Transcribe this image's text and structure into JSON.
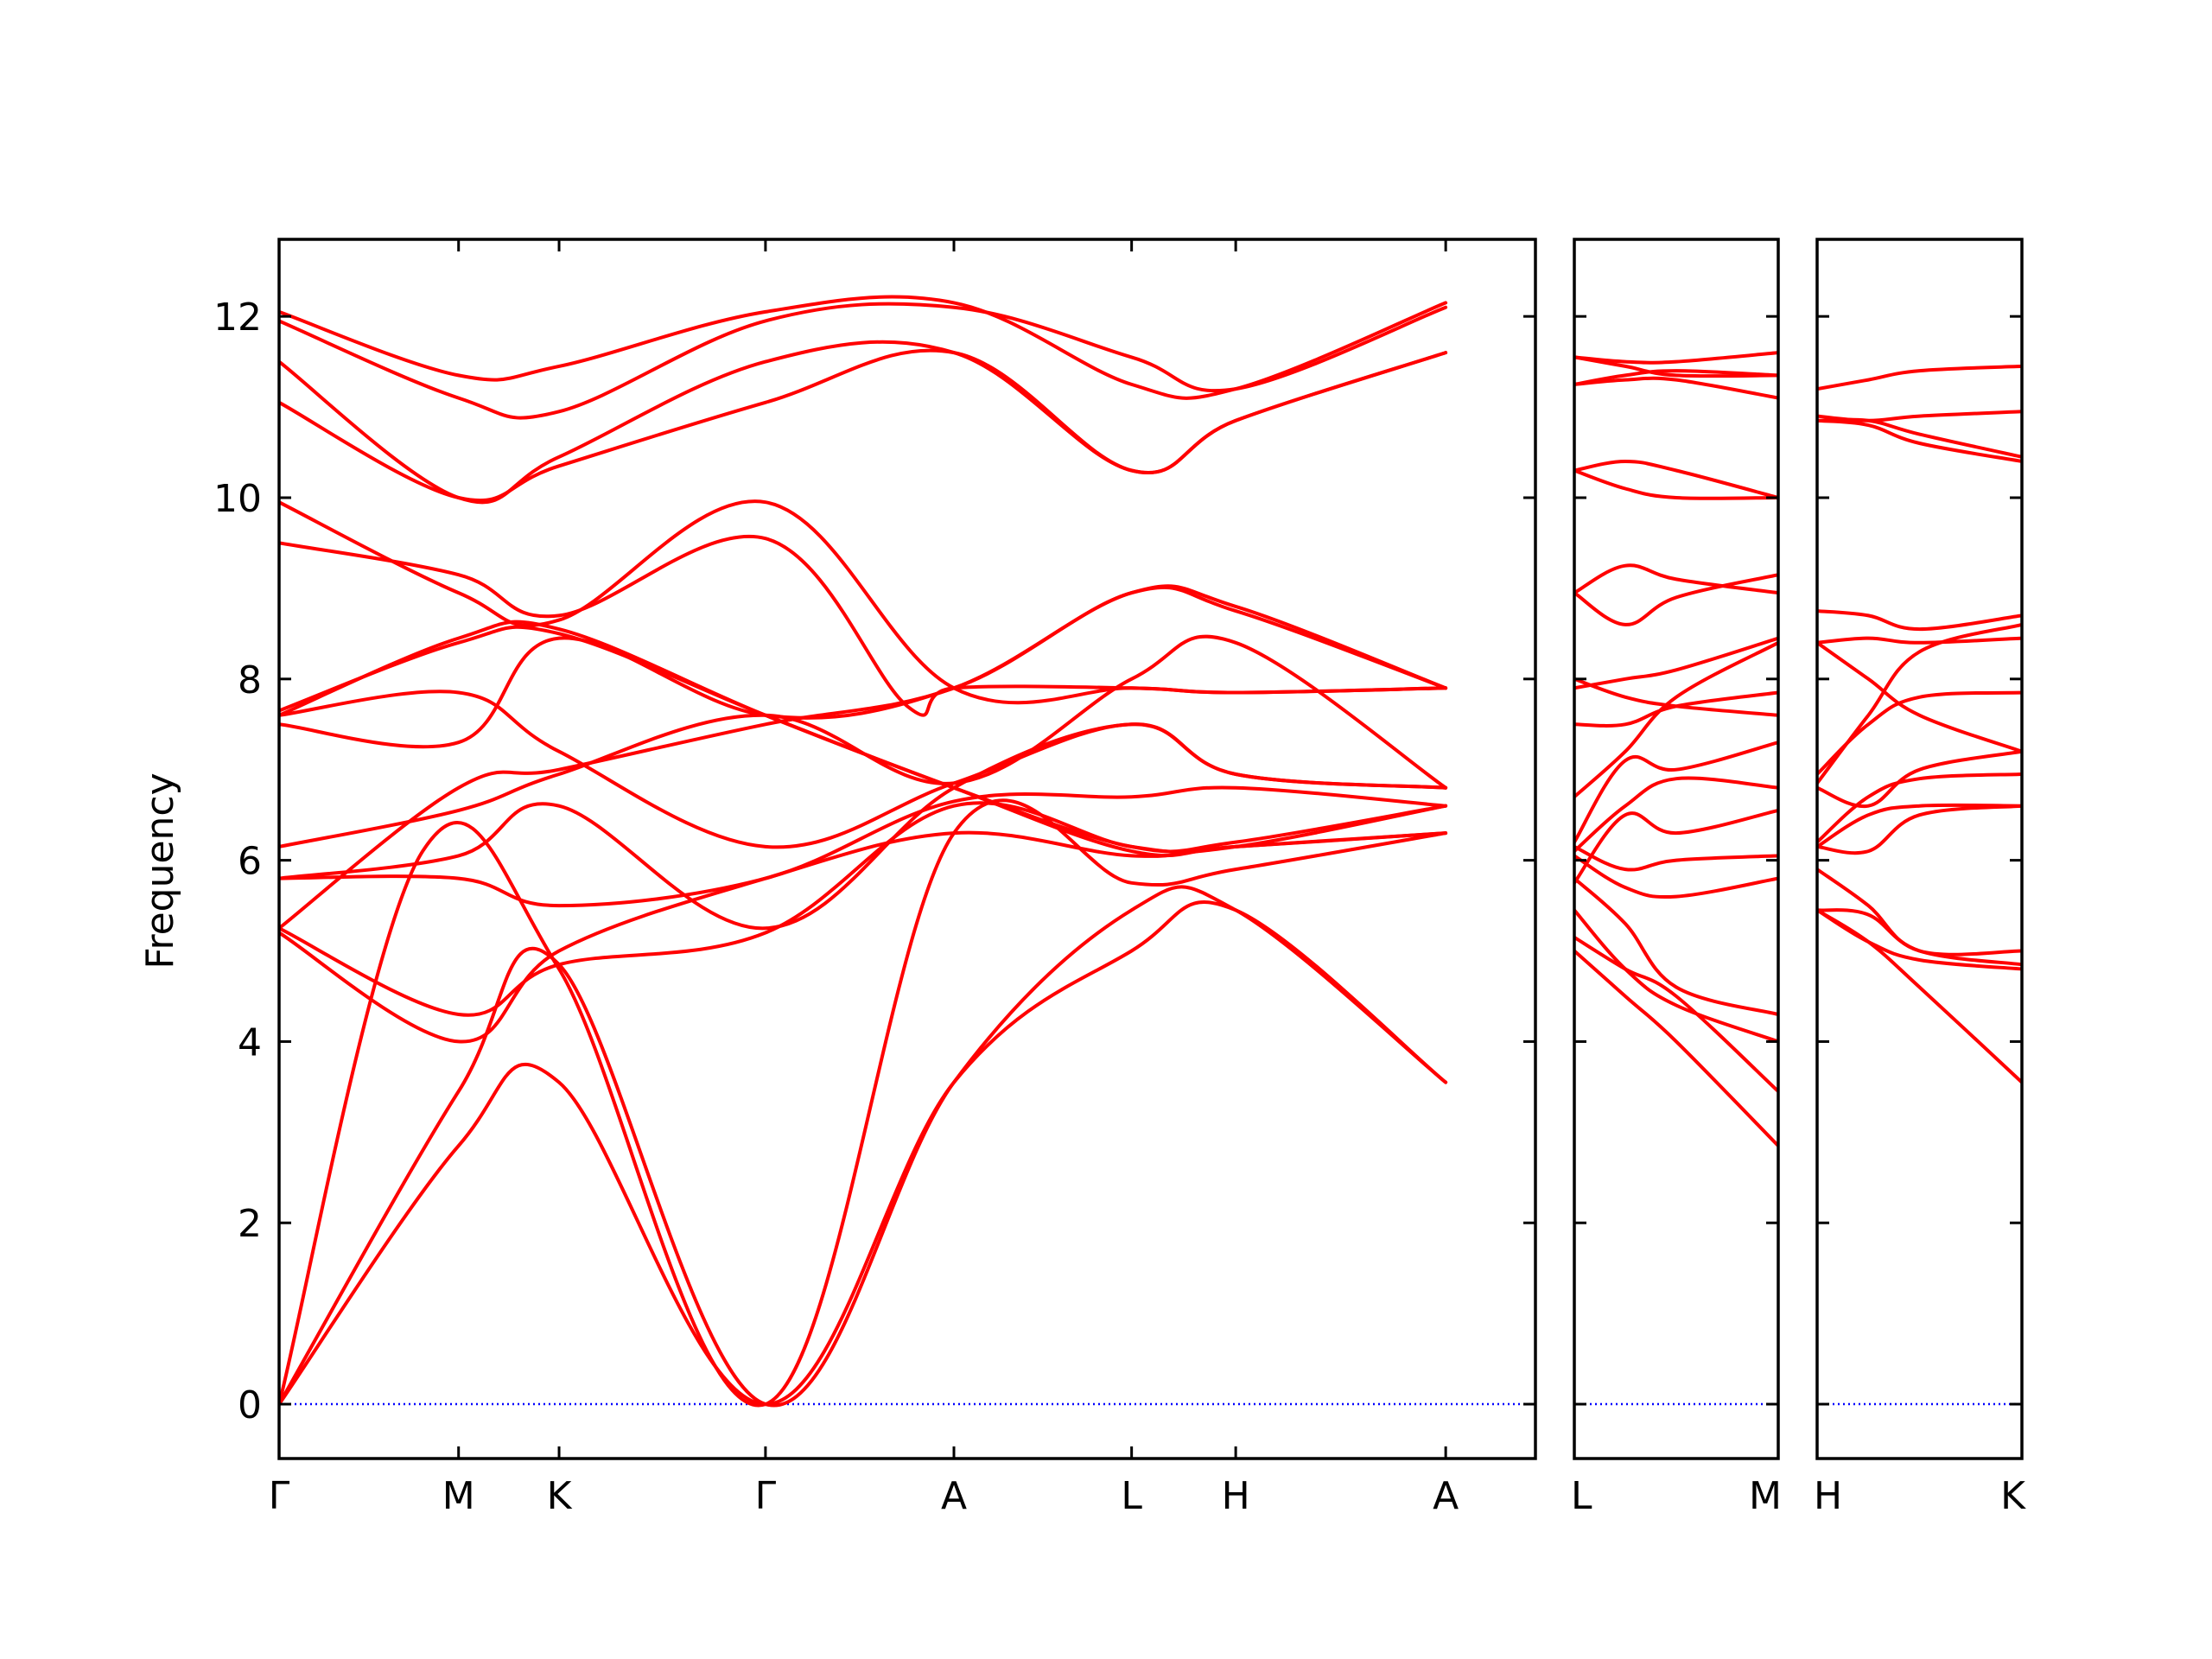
{
  "chart_data": {
    "type": "line",
    "title": "",
    "ylabel": "Frequency",
    "ylim": [
      -0.6,
      12.85
    ],
    "yticks": [
      0,
      2,
      4,
      6,
      8,
      10,
      12
    ],
    "line_color": "#ff0000",
    "zero_line_color": "#0000ff",
    "panels": [
      {
        "name": "main",
        "x_range": [
          0,
          7
        ],
        "tick_labels": [
          {
            "x": 0,
            "label": "Γ"
          },
          {
            "x": 1,
            "label": "M"
          },
          {
            "x": 1.56,
            "label": "K"
          },
          {
            "x": 2.71,
            "label": "Γ"
          },
          {
            "x": 3.76,
            "label": "A"
          },
          {
            "x": 4.75,
            "label": "L"
          },
          {
            "x": 5.33,
            "label": "H"
          },
          {
            "x": 6.5,
            "label": "A"
          }
        ],
        "series": [
          {
            "x": [
              0,
              1,
              1.56,
              2.71,
              3.76,
              4.75,
              5.33,
              6.5
            ],
            "y": [
              0,
              2.85,
              3.55,
              0,
              3.55,
              5.0,
              5.45,
              3.55
            ]
          },
          {
            "x": [
              0,
              1,
              1.56,
              2.71,
              3.76,
              4.75,
              5.33,
              6.5
            ],
            "y": [
              0,
              3.45,
              4.85,
              0,
              3.55,
              5.45,
              5.45,
              3.55
            ]
          },
          {
            "x": [
              0,
              0.8,
              1.56,
              2.71,
              3.76,
              4.75,
              5.33,
              6.5
            ],
            "y": [
              0,
              6.1,
              4.8,
              0,
              6.3,
              5.75,
              5.9,
              6.3
            ]
          },
          {
            "x": [
              0,
              1,
              1.56,
              2.71,
              3.76,
              4.75,
              5.33,
              6.5
            ],
            "y": [
              5.2,
              4.0,
              5.0,
              5.8,
              6.3,
              6.05,
              6.15,
              6.3
            ]
          },
          {
            "x": [
              0,
              1,
              1.56,
              2.71,
              3.76,
              4.75,
              5.33,
              6.5
            ],
            "y": [
              5.25,
              4.3,
              4.85,
              5.2,
              6.6,
              6.15,
              6.15,
              6.6
            ]
          },
          {
            "x": [
              0,
              1,
              1.56,
              2.71,
              3.76,
              4.75,
              5.33,
              6.5
            ],
            "y": [
              5.8,
              5.8,
              5.5,
              5.8,
              6.65,
              6.7,
              6.8,
              6.6
            ]
          },
          {
            "x": [
              0,
              1,
              1.56,
              2.71,
              3.76,
              4.75,
              5.33,
              6.5
            ],
            "y": [
              5.8,
              6.05,
              6.6,
              5.25,
              6.8,
              7.5,
              6.95,
              6.8
            ]
          },
          {
            "x": [
              0,
              1,
              1.56,
              2.71,
              3.76,
              4.75,
              5.33,
              6.5
            ],
            "y": [
              6.15,
              6.55,
              6.95,
              7.6,
              6.85,
              8.0,
              8.4,
              6.8
            ]
          },
          {
            "x": [
              0,
              1,
              1.56,
              2.71,
              3.76,
              4.75,
              5.33,
              6.5
            ],
            "y": [
              5.25,
              6.8,
              7.0,
              7.5,
              7.9,
              8.95,
              8.8,
              7.9
            ]
          },
          {
            "x": [
              0,
              1,
              1.56,
              2.71,
              3.76,
              4.75,
              5.33,
              6.5
            ],
            "y": [
              7.5,
              7.3,
              8.45,
              7.6,
              7.9,
              8.95,
              8.75,
              7.9
            ]
          },
          {
            "x": [
              0,
              1,
              1.56,
              2.71,
              3.76,
              4.75,
              5.33,
              6.5
            ],
            "y": [
              7.6,
              7.85,
              7.2,
              6.15,
              6.85,
              7.5,
              6.95,
              6.8
            ]
          },
          {
            "x": [
              0,
              1,
              1.56,
              2.71,
              3.76,
              4.75,
              5.33,
              6.5
            ],
            "y": [
              7.65,
              8.4,
              8.5,
              7.6,
              6.8,
              6.15,
              6.2,
              6.6
            ]
          },
          {
            "x": [
              0,
              1,
              1.56,
              2.71,
              3.76,
              4.75,
              5.33,
              6.5
            ],
            "y": [
              7.6,
              8.45,
              8.55,
              7.6,
              6.8,
              6.1,
              6.15,
              6.3
            ]
          },
          {
            "x": [
              0,
              1,
              1.56,
              2.71,
              3.5,
              3.76,
              4.75,
              5.33,
              6.5
            ],
            "y": [
              9.5,
              9.15,
              8.7,
              9.55,
              7.7,
              7.9,
              7.9,
              7.85,
              7.9
            ]
          },
          {
            "x": [
              0,
              1,
              1.56,
              2.71,
              3.76,
              4.75,
              5.33,
              6.5
            ],
            "y": [
              9.95,
              8.95,
              8.65,
              9.95,
              7.9,
              7.9,
              7.85,
              7.9
            ]
          },
          {
            "x": [
              0,
              1,
              1.56,
              2.71,
              3.76,
              4.75,
              5.33,
              6.5
            ],
            "y": [
              11.05,
              10.0,
              10.35,
              11.05,
              11.6,
              10.3,
              10.85,
              11.6
            ]
          },
          {
            "x": [
              0,
              1,
              1.56,
              2.71,
              3.76,
              4.75,
              5.33,
              6.5
            ],
            "y": [
              11.5,
              10.0,
              10.45,
              11.5,
              11.6,
              10.3,
              10.85,
              11.6
            ]
          },
          {
            "x": [
              0,
              1,
              1.56,
              2.71,
              3.76,
              4.75,
              5.33,
              6.5
            ],
            "y": [
              11.95,
              11.1,
              10.95,
              11.95,
              12.1,
              11.55,
              11.2,
              12.1
            ]
          },
          {
            "x": [
              0,
              1,
              1.56,
              2.71,
              3.76,
              4.75,
              5.33,
              6.5
            ],
            "y": [
              12.05,
              11.35,
              11.45,
              12.05,
              12.15,
              11.25,
              11.2,
              12.15
            ]
          }
        ]
      },
      {
        "name": "L-M",
        "x_range": [
          0,
          1
        ],
        "tick_labels": [
          {
            "x": 0,
            "label": "L"
          },
          {
            "x": 1,
            "label": "M"
          }
        ],
        "series": [
          {
            "x": [
              0,
              0.25,
              0.5,
              1
            ],
            "y": [
              5.0,
              4.5,
              4.0,
              2.85
            ]
          },
          {
            "x": [
              0,
              0.25,
              0.5,
              1
            ],
            "y": [
              5.15,
              4.8,
              4.5,
              3.45
            ]
          },
          {
            "x": [
              0,
              0.25,
              0.5,
              1
            ],
            "y": [
              5.45,
              4.8,
              4.4,
              4.0
            ]
          },
          {
            "x": [
              0,
              0.25,
              0.5,
              1
            ],
            "y": [
              5.8,
              5.3,
              4.6,
              4.3
            ]
          },
          {
            "x": [
              0,
              0.25,
              0.5,
              1
            ],
            "y": [
              6.05,
              5.7,
              5.6,
              5.8
            ]
          },
          {
            "x": [
              0,
              0.25,
              0.5,
              1
            ],
            "y": [
              6.15,
              5.9,
              6.0,
              6.05
            ]
          },
          {
            "x": [
              0,
              0.25,
              0.5,
              1
            ],
            "y": [
              5.75,
              6.5,
              6.3,
              6.55
            ]
          },
          {
            "x": [
              0,
              0.25,
              0.5,
              1
            ],
            "y": [
              6.1,
              6.6,
              6.9,
              6.8
            ]
          },
          {
            "x": [
              0,
              0.25,
              0.5,
              1
            ],
            "y": [
              6.2,
              7.1,
              7.0,
              7.3
            ]
          },
          {
            "x": [
              0,
              0.25,
              0.5,
              1
            ],
            "y": [
              7.5,
              7.5,
              7.7,
              7.85
            ]
          },
          {
            "x": [
              0,
              0.25,
              0.5,
              1
            ],
            "y": [
              6.7,
              7.2,
              7.8,
              8.4
            ]
          },
          {
            "x": [
              0,
              0.25,
              0.5,
              1
            ],
            "y": [
              7.9,
              8.0,
              8.1,
              8.45
            ]
          },
          {
            "x": [
              0,
              0.25,
              0.5,
              1
            ],
            "y": [
              8.0,
              7.8,
              7.7,
              7.6
            ]
          },
          {
            "x": [
              0,
              0.25,
              0.5,
              1
            ],
            "y": [
              8.95,
              9.25,
              9.1,
              8.95
            ]
          },
          {
            "x": [
              0,
              0.25,
              0.5,
              1
            ],
            "y": [
              8.95,
              8.6,
              8.9,
              9.15
            ]
          },
          {
            "x": [
              0,
              0.25,
              0.5,
              1
            ],
            "y": [
              10.3,
              10.1,
              10.0,
              10.0
            ]
          },
          {
            "x": [
              0,
              0.25,
              0.5,
              1
            ],
            "y": [
              10.3,
              10.4,
              10.3,
              10.0
            ]
          },
          {
            "x": [
              0,
              0.25,
              0.5,
              1
            ],
            "y": [
              11.25,
              11.35,
              11.4,
              11.35
            ]
          },
          {
            "x": [
              0,
              0.25,
              0.5,
              1
            ],
            "y": [
              11.25,
              11.3,
              11.3,
              11.1
            ]
          },
          {
            "x": [
              0,
              0.25,
              0.5,
              1
            ],
            "y": [
              11.55,
              11.45,
              11.35,
              11.35
            ]
          },
          {
            "x": [
              0,
              0.25,
              0.5,
              1
            ],
            "y": [
              11.55,
              11.5,
              11.5,
              11.6
            ]
          }
        ]
      },
      {
        "name": "H-K",
        "x_range": [
          0,
          1
        ],
        "tick_labels": [
          {
            "x": 0,
            "label": "H"
          },
          {
            "x": 1,
            "label": "K"
          }
        ],
        "series": [
          {
            "x": [
              0,
              0.25,
              0.5,
              1
            ],
            "y": [
              5.45,
              5.1,
              4.6,
              3.55
            ]
          },
          {
            "x": [
              0,
              0.25,
              0.5,
              1
            ],
            "y": [
              5.45,
              5.1,
              4.9,
              4.8
            ]
          },
          {
            "x": [
              0,
              0.25,
              0.5,
              1
            ],
            "y": [
              5.45,
              5.4,
              5.0,
              4.85
            ]
          },
          {
            "x": [
              0,
              0.25,
              0.5,
              1
            ],
            "y": [
              5.9,
              5.5,
              5.0,
              5.0
            ]
          },
          {
            "x": [
              0,
              0.25,
              0.5,
              1
            ],
            "y": [
              6.15,
              6.1,
              6.5,
              6.6
            ]
          },
          {
            "x": [
              0,
              0.25,
              0.5,
              1
            ],
            "y": [
              6.15,
              6.5,
              6.6,
              6.6
            ]
          },
          {
            "x": [
              0,
              0.25,
              0.5,
              1
            ],
            "y": [
              6.2,
              6.7,
              6.9,
              6.95
            ]
          },
          {
            "x": [
              0,
              0.25,
              0.5,
              1
            ],
            "y": [
              6.8,
              6.6,
              7.0,
              7.2
            ]
          },
          {
            "x": [
              0,
              0.25,
              0.5,
              1
            ],
            "y": [
              6.95,
              7.5,
              7.8,
              7.85
            ]
          },
          {
            "x": [
              0,
              0.25,
              0.5,
              1
            ],
            "y": [
              8.4,
              8.0,
              7.6,
              7.2
            ]
          },
          {
            "x": [
              0,
              0.25,
              0.5,
              1
            ],
            "y": [
              8.4,
              8.45,
              8.4,
              8.45
            ]
          },
          {
            "x": [
              0,
              0.25,
              0.5,
              1
            ],
            "y": [
              8.75,
              8.7,
              8.55,
              8.7
            ]
          },
          {
            "x": [
              0,
              0.25,
              0.5,
              1
            ],
            "y": [
              6.85,
              7.6,
              8.3,
              8.6
            ]
          },
          {
            "x": [
              0,
              0.25,
              0.5,
              1
            ],
            "y": [
              10.85,
              10.8,
              10.6,
              10.4
            ]
          },
          {
            "x": [
              0,
              0.25,
              0.5,
              1
            ],
            "y": [
              10.85,
              10.85,
              10.7,
              10.45
            ]
          },
          {
            "x": [
              0,
              0.25,
              0.5,
              1
            ],
            "y": [
              10.9,
              10.85,
              10.9,
              10.95
            ]
          },
          {
            "x": [
              0,
              0.25,
              0.5,
              1
            ],
            "y": [
              11.2,
              11.3,
              11.4,
              11.45
            ]
          }
        ]
      }
    ]
  }
}
